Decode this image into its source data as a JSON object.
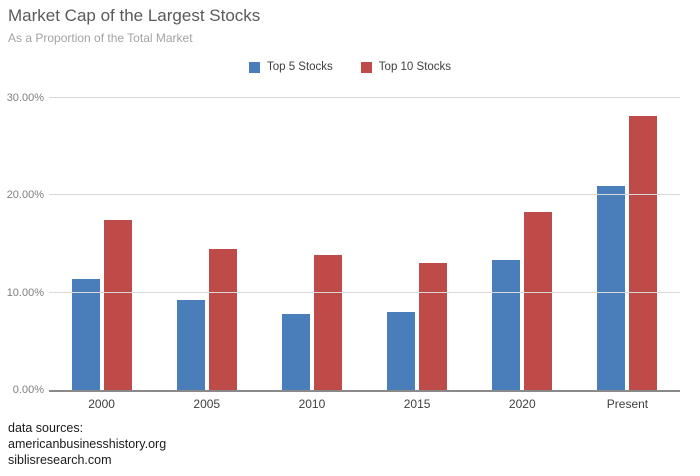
{
  "chart_data": {
    "type": "bar",
    "title": "Market Cap of the Largest Stocks",
    "subtitle": "As a Proportion of the Total Market",
    "categories": [
      "2000",
      "2005",
      "2010",
      "2015",
      "2020",
      "Present"
    ],
    "series": [
      {
        "name": "Top 5 Stocks",
        "color": "#4A7EBB",
        "values": [
          11.4,
          9.2,
          7.8,
          8.0,
          13.4,
          21.0
        ]
      },
      {
        "name": "Top 10 Stocks",
        "color": "#BE4B48",
        "values": [
          17.5,
          14.5,
          13.9,
          13.1,
          18.3,
          28.2
        ]
      }
    ],
    "ylim": [
      0,
      30
    ],
    "yticks": [
      0,
      10,
      20,
      30
    ],
    "ytick_labels": [
      "0.00%",
      "10.00%",
      "20.00%",
      "30.00%"
    ],
    "grid": true,
    "legend_position": "top-center"
  },
  "footer": {
    "label": "data sources:",
    "sources": [
      "americanbusinesshistory.org",
      "siblisresearch.com"
    ]
  },
  "colors": {
    "top5_bar": "#4A7EBB",
    "top10_bar": "#BE4B48",
    "gridline": "#d9d9d9",
    "axis_line": "#898989",
    "title_text": "#5a5a5a",
    "subtitle_text": "#a3a3a3"
  }
}
